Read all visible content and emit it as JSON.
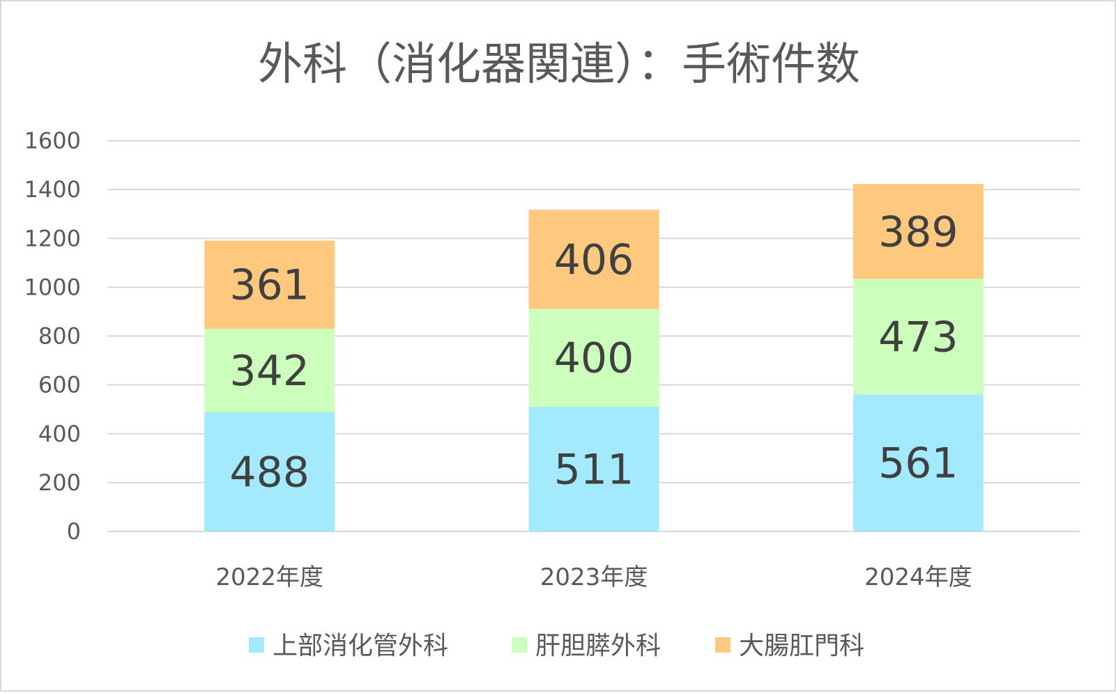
{
  "chart_data": {
    "type": "bar",
    "stacked": true,
    "title": "外科（消化器関連）：手術件数",
    "xlabel": "",
    "ylabel": "",
    "categories": [
      "2022年度",
      "2023年度",
      "2024年度"
    ],
    "yticks": [
      "0",
      "200",
      "400",
      "600",
      "800",
      "1000",
      "1200",
      "1400",
      "1600"
    ],
    "ylim": [
      0,
      1600
    ],
    "grid": true,
    "legend_position": "bottom",
    "series": [
      {
        "name": "上部消化管外科",
        "values": [
          488,
          511,
          561
        ],
        "color": "#a3e9ff"
      },
      {
        "name": "肝胆膵外科",
        "values": [
          342,
          400,
          473
        ],
        "color": "#ccffbb"
      },
      {
        "name": "大腸肛門科",
        "values": [
          361,
          406,
          389
        ],
        "color": "#ffc87f"
      }
    ]
  }
}
